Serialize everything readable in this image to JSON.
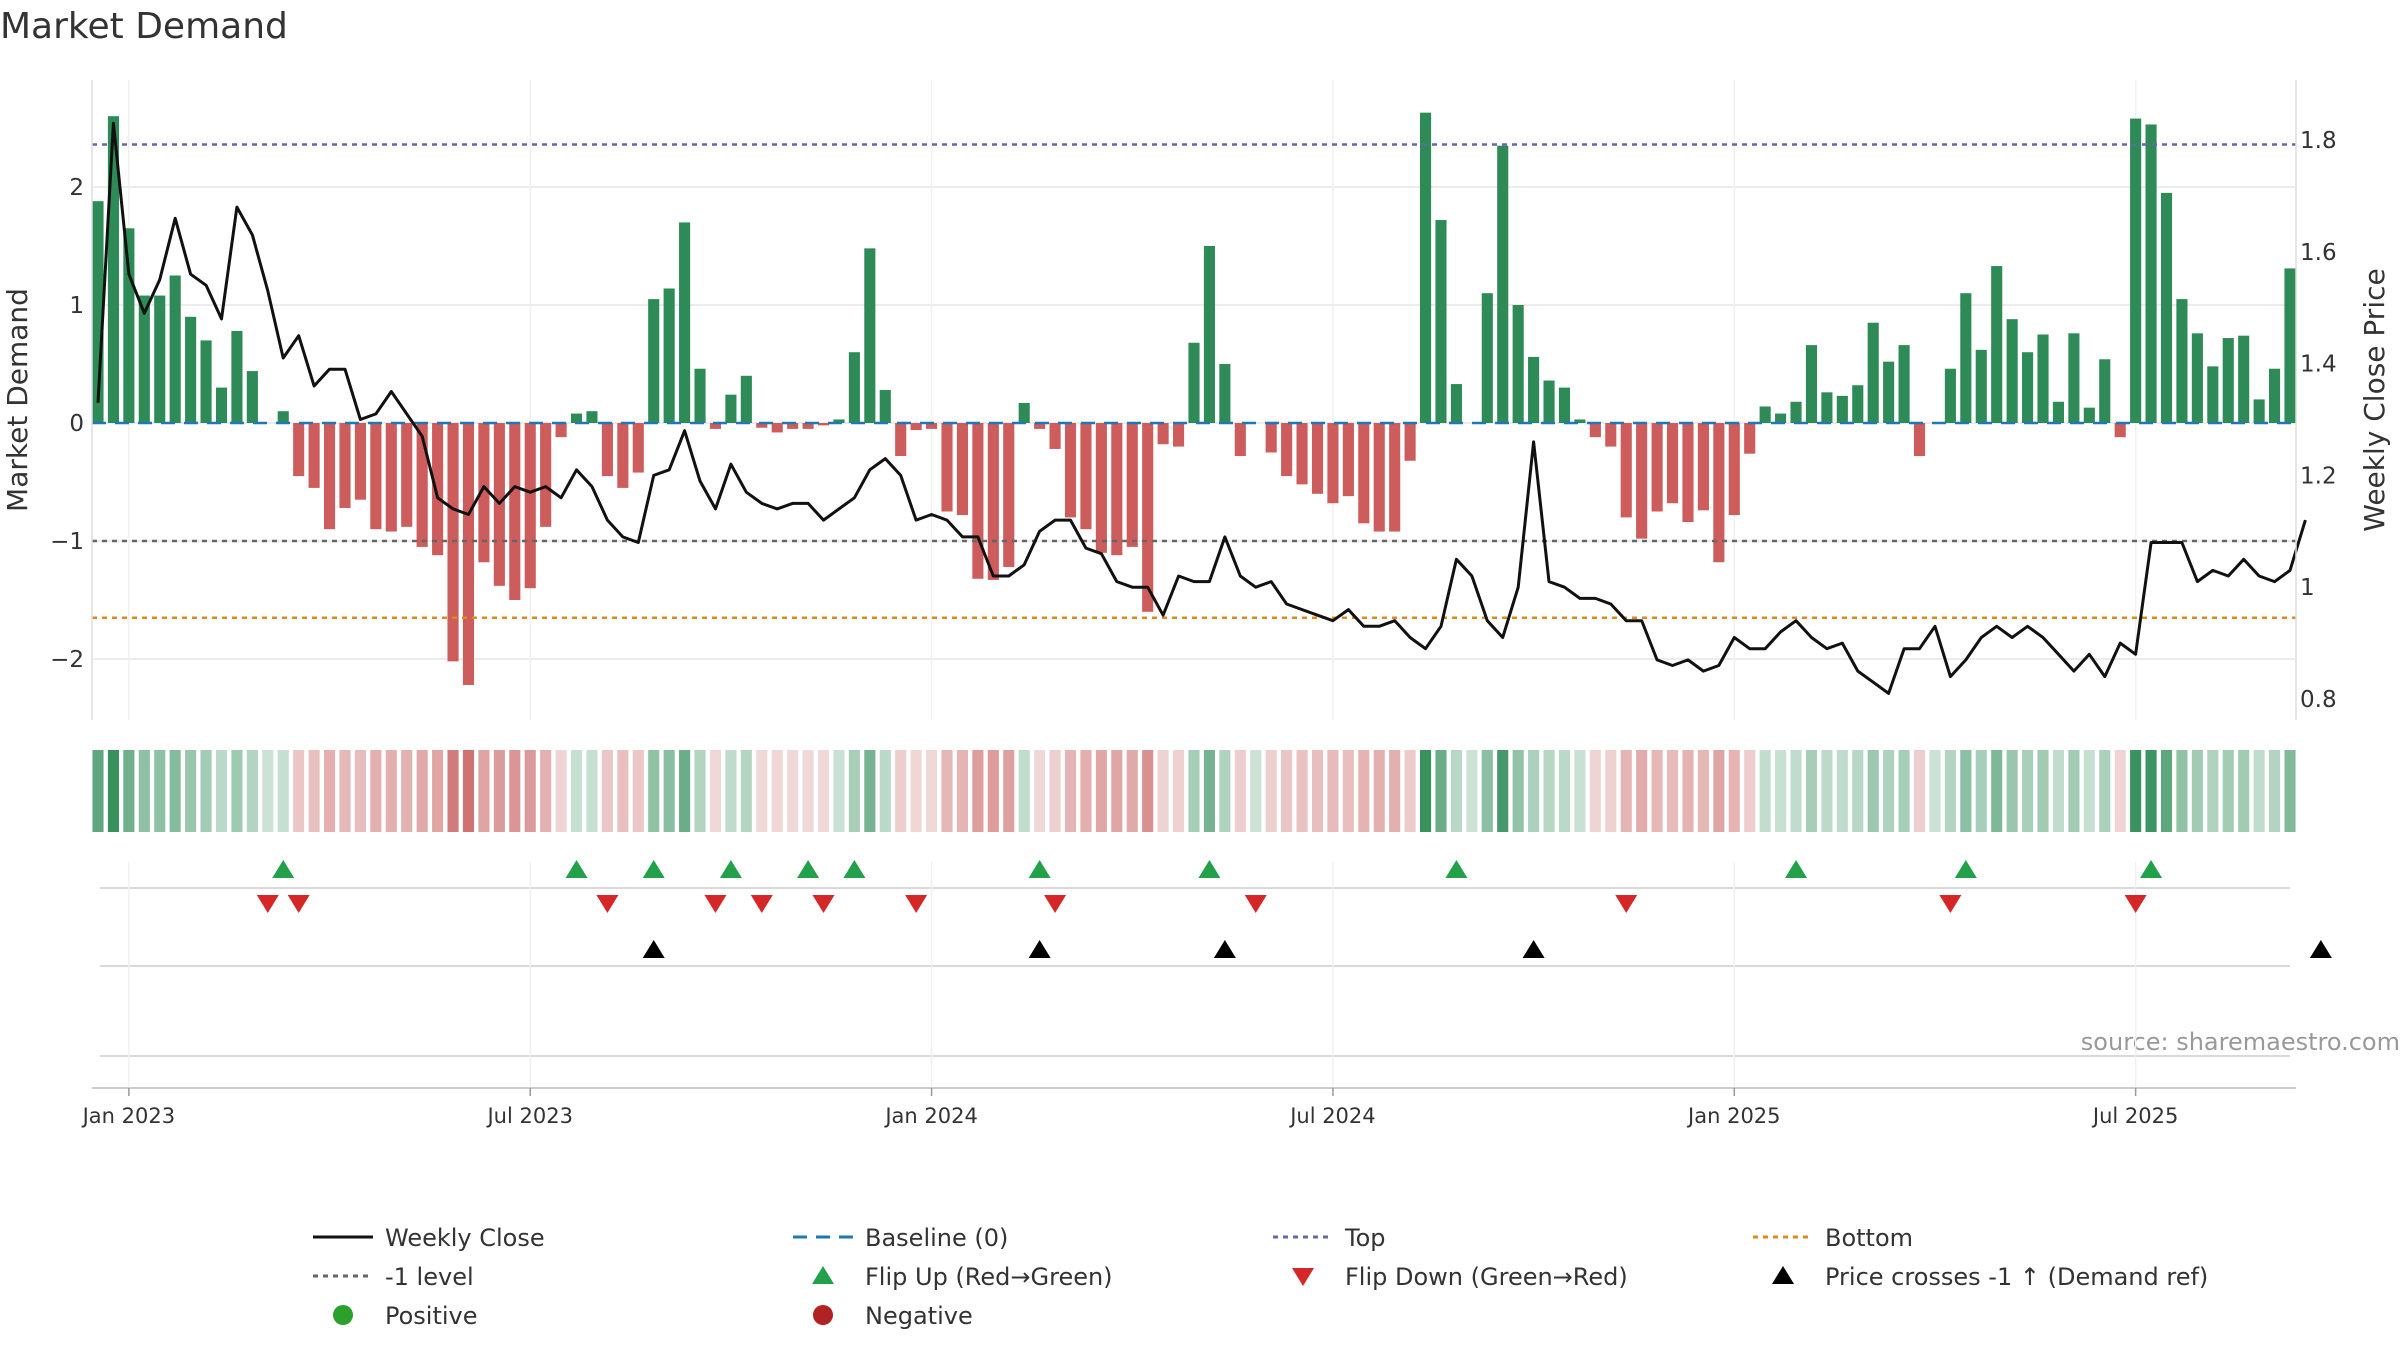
{
  "chart_data": {
    "type": "bar",
    "title": "Market Demand",
    "ylabel": "Market Demand",
    "y2label": "Weekly Close Price",
    "ylim": [
      -2.5,
      2.65
    ],
    "y2lim": [
      0.78,
      1.86
    ],
    "yticks": [
      -2,
      -1,
      0,
      1,
      2
    ],
    "yticklabels": [
      "−2",
      "−1",
      "0",
      "1",
      "2"
    ],
    "y2ticks": [
      0.8,
      1.0,
      1.2,
      1.4,
      1.6,
      1.8
    ],
    "y2ticklabels": [
      "0.8",
      "1",
      "1.2",
      "1.4",
      "1.6",
      "1.8"
    ],
    "xticklabels": [
      "Jan 2023",
      "Jul 2023",
      "Jan 2024",
      "Jul 2024",
      "Jan 2025",
      "Jul 2025"
    ],
    "xtick_week_index": [
      2,
      28,
      54,
      80,
      106,
      132
    ],
    "top_level": 2.36,
    "bottom_level": -1.65,
    "minus_one_level": -1,
    "demand": [
      1.88,
      2.6,
      1.65,
      1.08,
      1.08,
      1.25,
      0.9,
      0.7,
      0.3,
      0.78,
      0.44,
      0,
      0.1,
      -0.45,
      -0.55,
      -0.9,
      -0.72,
      -0.65,
      -0.9,
      -0.92,
      -0.88,
      -1.05,
      -1.12,
      -2.02,
      -2.22,
      -1.18,
      -1.38,
      -1.5,
      -1.4,
      -0.88,
      -0.12,
      0.08,
      0.1,
      -0.45,
      -0.55,
      -0.42,
      1.05,
      1.14,
      1.7,
      0.46,
      -0.05,
      0.24,
      0.4,
      -0.04,
      -0.08,
      -0.05,
      -0.05,
      -0.02,
      0.03,
      0.6,
      1.48,
      0.28,
      -0.28,
      -0.06,
      -0.05,
      -0.75,
      -0.78,
      -1.32,
      -1.33,
      -1.22,
      0.17,
      -0.05,
      -0.22,
      -0.8,
      -0.9,
      -1.1,
      -1.12,
      -1.05,
      -1.6,
      -0.18,
      -0.2,
      0.68,
      1.5,
      0.5,
      -0.28,
      0,
      -0.25,
      -0.45,
      -0.52,
      -0.6,
      -0.68,
      -0.62,
      -0.85,
      -0.92,
      -0.92,
      -0.32,
      2.63,
      1.72,
      0.33,
      0,
      1.1,
      2.35,
      1,
      0.56,
      0.36,
      0.3,
      0.03,
      -0.12,
      -0.2,
      -0.8,
      -0.98,
      -0.75,
      -0.68,
      -0.84,
      -0.74,
      -1.18,
      -0.78,
      -0.26,
      0.14,
      0.08,
      0.18,
      0.66,
      0.26,
      0.23,
      0.32,
      0.85,
      0.52,
      0.66,
      -0.28,
      0,
      0.46,
      1.1,
      0.62,
      1.33,
      0.88,
      0.6,
      0.75,
      0.18,
      0.76,
      0.13,
      0.54,
      -0.12,
      2.58,
      2.53,
      1.95,
      1.05,
      0.76,
      0.48,
      0.72,
      0.74,
      0.2,
      0.46,
      1.31
    ],
    "price": [
      1.33,
      1.83,
      1.56,
      1.49,
      1.55,
      1.66,
      1.56,
      1.54,
      1.48,
      1.68,
      1.63,
      1.53,
      1.41,
      1.45,
      1.36,
      1.39,
      1.39,
      1.3,
      1.31,
      1.35,
      1.31,
      1.27,
      1.16,
      1.14,
      1.13,
      1.18,
      1.15,
      1.18,
      1.17,
      1.18,
      1.16,
      1.21,
      1.18,
      1.12,
      1.09,
      1.08,
      1.2,
      1.21,
      1.28,
      1.19,
      1.14,
      1.22,
      1.17,
      1.15,
      1.14,
      1.15,
      1.15,
      1.12,
      1.14,
      1.16,
      1.21,
      1.23,
      1.2,
      1.12,
      1.13,
      1.12,
      1.09,
      1.09,
      1.02,
      1.02,
      1.04,
      1.1,
      1.12,
      1.12,
      1.07,
      1.06,
      1.01,
      1,
      1,
      0.95,
      1.02,
      1.01,
      1.01,
      1.09,
      1.02,
      1,
      1.01,
      0.97,
      0.96,
      0.95,
      0.94,
      0.96,
      0.93,
      0.93,
      0.94,
      0.91,
      0.89,
      0.93,
      1.05,
      1.02,
      0.94,
      0.91,
      1.0,
      1.26,
      1.01,
      1,
      0.98,
      0.98,
      0.97,
      0.94,
      0.94,
      0.87,
      0.86,
      0.87,
      0.85,
      0.86,
      0.91,
      0.89,
      0.89,
      0.92,
      0.94,
      0.91,
      0.89,
      0.9,
      0.85,
      0.83,
      0.81,
      0.89,
      0.89,
      0.93,
      0.84,
      0.87,
      0.91,
      0.93,
      0.91,
      0.93,
      0.91,
      0.88,
      0.85,
      0.88,
      0.84,
      0.9,
      0.88,
      1.08,
      1.08,
      1.08,
      1.01,
      1.03,
      1.02,
      1.05,
      1.02,
      1.01,
      1.03,
      1.12
    ],
    "flip_up_weeks": [
      12,
      31,
      36,
      41,
      46,
      49,
      61,
      72,
      88,
      110,
      121,
      133
    ],
    "flip_down_weeks": [
      11,
      13,
      33,
      40,
      43,
      47,
      53,
      62,
      75,
      99,
      120,
      132
    ],
    "price_cross_weeks": [
      36,
      61,
      73,
      93,
      144
    ],
    "legend": [
      {
        "key": "weekly_close",
        "label": "Weekly Close",
        "color": "#111111"
      },
      {
        "key": "baseline",
        "label": "Baseline (0)",
        "color": "#1f77b4"
      },
      {
        "key": "top",
        "label": "Top",
        "color": "#6666aa"
      },
      {
        "key": "bottom",
        "label": "Bottom",
        "color": "#e08a1e"
      },
      {
        "key": "minus_one",
        "label": "-1 level",
        "color": "#666666"
      },
      {
        "key": "flip_up",
        "label": "Flip Up (Red→Green)",
        "color": "#22a04a"
      },
      {
        "key": "flip_down",
        "label": "Flip Down (Green→Red)",
        "color": "#d62728"
      },
      {
        "key": "price_cross",
        "label": "Price crosses -1 ↑ (Demand ref)",
        "color": "#000000"
      },
      {
        "key": "positive",
        "label": "Positive",
        "color": "#2ca02c"
      },
      {
        "key": "negative",
        "label": "Negative",
        "color": "#b22222"
      }
    ],
    "legend_position": "bottom",
    "source": "source: sharemaestro.com",
    "colors": {
      "positive_bar": "#2e8b57",
      "negative_bar": "#cd5c5c",
      "price_line": "#111111",
      "grid": "#e6e6e6"
    }
  }
}
